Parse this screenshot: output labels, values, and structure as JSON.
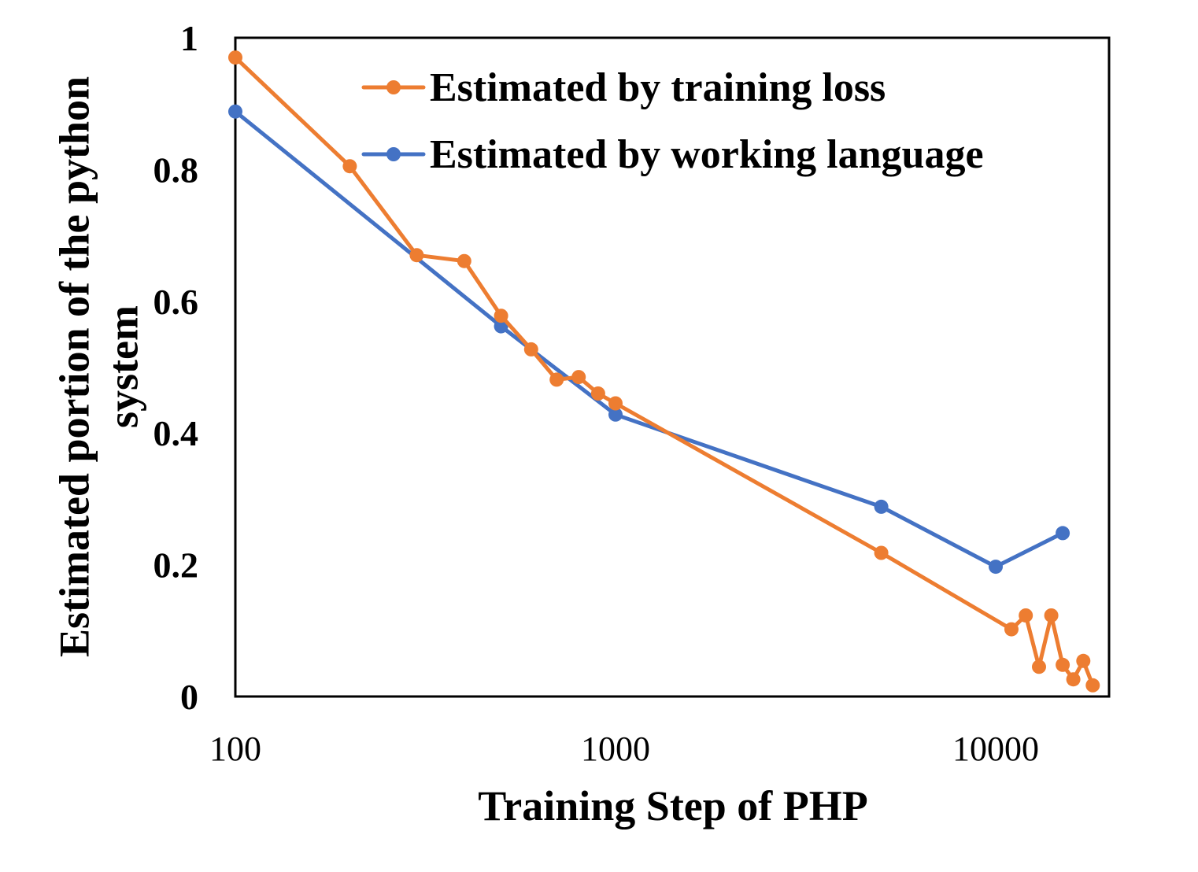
{
  "chart_data": {
    "type": "line",
    "xscale": "log",
    "xlim": [
      100,
      17500
    ],
    "ylim": [
      0,
      1
    ],
    "xticks": [
      "100",
      "1000",
      "10000"
    ],
    "yticks": [
      "0",
      "0.2",
      "0.4",
      "0.6",
      "0.8",
      "1"
    ],
    "xlabel": "Training Step of PHP",
    "ylabel_lines": [
      "Estimated portion of the python",
      "system"
    ],
    "grid": false,
    "legend_position": "top",
    "series": [
      {
        "name": "Estimated by training loss",
        "color": "#ED7D31",
        "x": [
          100,
          200,
          300,
          400,
          500,
          600,
          700,
          800,
          900,
          1000,
          5000,
          11000,
          12000,
          13000,
          14000,
          15000,
          16000,
          17000,
          18000
        ],
        "y": [
          0.97,
          0.805,
          0.67,
          0.661,
          0.578,
          0.527,
          0.481,
          0.485,
          0.46,
          0.445,
          0.218,
          0.102,
          0.123,
          0.045,
          0.123,
          0.048,
          0.026,
          0.054,
          0.017
        ]
      },
      {
        "name": "Estimated by working language",
        "color": "#4472C4",
        "x": [
          100,
          500,
          1000,
          5000,
          10000,
          15000
        ],
        "y": [
          0.888,
          0.562,
          0.428,
          0.288,
          0.197,
          0.248
        ]
      }
    ]
  }
}
